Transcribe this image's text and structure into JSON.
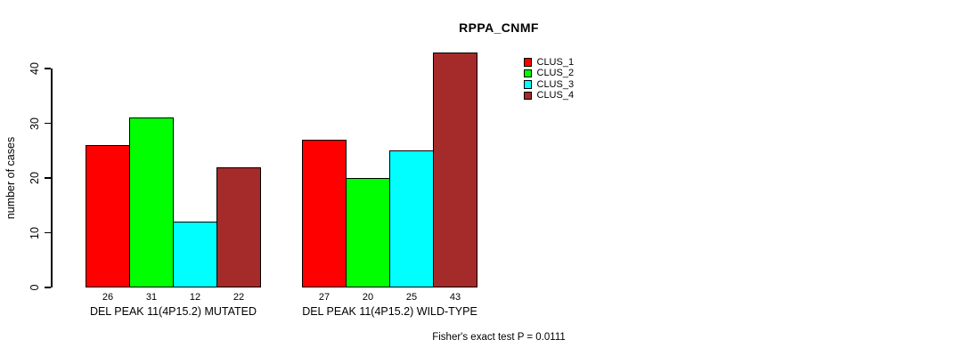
{
  "chart_data": {
    "type": "bar",
    "title": "RPPA_CNMF",
    "ylabel": "number of cases",
    "xlabel": "",
    "ylim": [
      0,
      43
    ],
    "yticks": [
      0,
      10,
      20,
      30,
      40
    ],
    "grid": false,
    "legend_position": "top-right",
    "series": [
      {
        "name": "CLUS_1",
        "color": "#ff0000"
      },
      {
        "name": "CLUS_2",
        "color": "#00ff00"
      },
      {
        "name": "CLUS_3",
        "color": "#00ffff"
      },
      {
        "name": "CLUS_4",
        "color": "#a52a2a"
      }
    ],
    "categories": [
      "DEL PEAK 11(4P15.2) MUTATED",
      "DEL PEAK 11(4P15.2) WILD-TYPE"
    ],
    "groups": [
      {
        "label": "DEL PEAK 11(4P15.2) MUTATED",
        "values": [
          26,
          31,
          12,
          22
        ]
      },
      {
        "label": "DEL PEAK 11(4P15.2) WILD-TYPE",
        "values": [
          27,
          20,
          25,
          43
        ]
      }
    ],
    "footnote": "Fisher's exact test P = 0.0111"
  }
}
